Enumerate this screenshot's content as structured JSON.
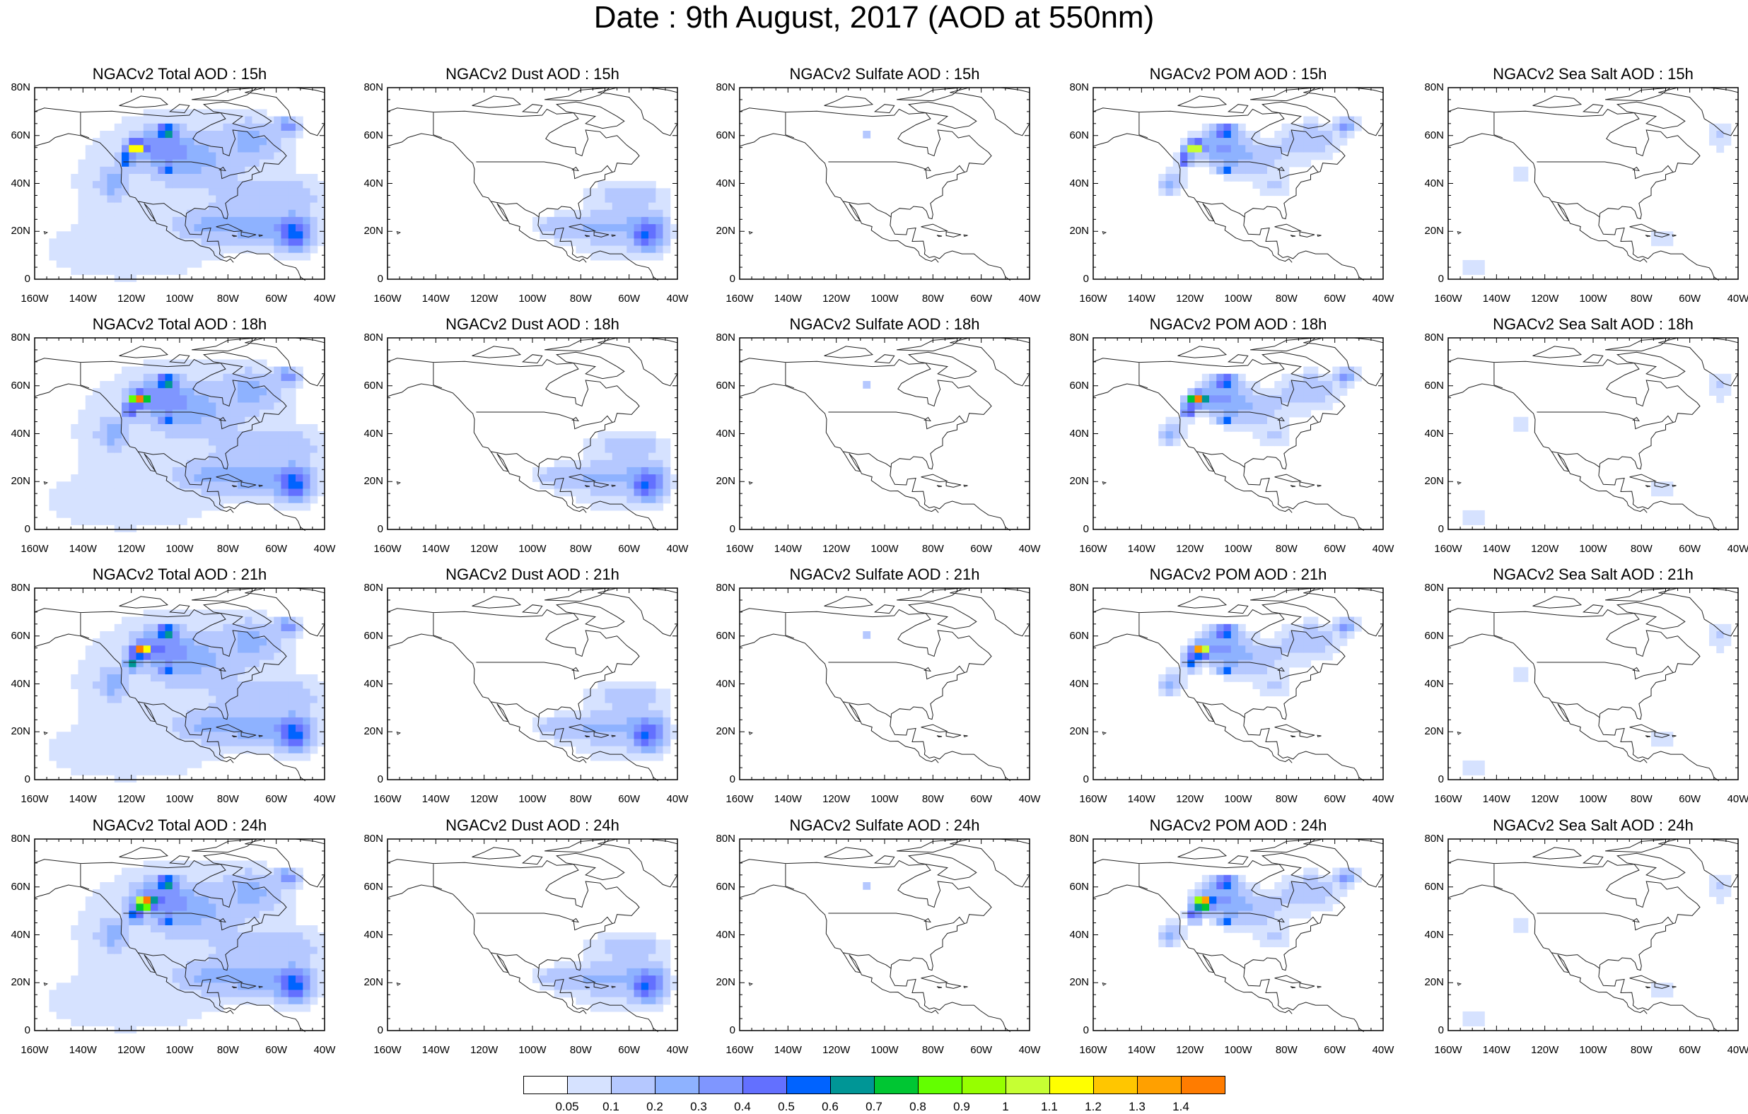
{
  "title": "Date : 9th August, 2017 (AOD at 550nm)",
  "panel_titles": [
    [
      "NGACv2 Total AOD : 15h",
      "NGACv2 Dust AOD : 15h",
      "NGACv2 Sulfate AOD : 15h",
      "NGACv2 POM AOD : 15h",
      "NGACv2 Sea Salt AOD : 15h"
    ],
    [
      "NGACv2 Total AOD : 18h",
      "NGACv2 Dust AOD : 18h",
      "NGACv2 Sulfate AOD : 18h",
      "NGACv2 POM AOD : 18h",
      "NGACv2 Sea Salt AOD : 18h"
    ],
    [
      "NGACv2 Total AOD : 21h",
      "NGACv2 Dust AOD : 21h",
      "NGACv2 Sulfate AOD : 21h",
      "NGACv2 POM AOD : 21h",
      "NGACv2 Sea Salt AOD : 21h"
    ],
    [
      "NGACv2 Total AOD : 24h",
      "NGACv2 Dust AOD : 24h",
      "NGACv2 Sulfate AOD : 24h",
      "NGACv2 POM AOD : 24h",
      "NGACv2 Sea Salt  AOD : 24h"
    ]
  ],
  "lat_labels": [
    "80N",
    "60N",
    "40N",
    "20N",
    "0"
  ],
  "lon_labels": [
    "160W",
    "140W",
    "120W",
    "100W",
    "80W",
    "60W",
    "40W"
  ],
  "colorbar": {
    "labels": [
      "0.05",
      "0.1",
      "0.2",
      "0.3",
      "0.4",
      "0.5",
      "0.6",
      "0.7",
      "0.8",
      "0.9",
      "1",
      "1.1",
      "1.2",
      "1.3",
      "1.4"
    ],
    "colors": [
      "#ffffff",
      "#d6e2ff",
      "#b5c8ff",
      "#8eb2ff",
      "#7f96ff",
      "#6370ff",
      "#0063ff",
      "#009696",
      "#00c633",
      "#63ff00",
      "#96ff00",
      "#c6ff33",
      "#ffff00",
      "#ffc600",
      "#ffa000",
      "#ff7c00",
      "#ff1900"
    ]
  }
}
